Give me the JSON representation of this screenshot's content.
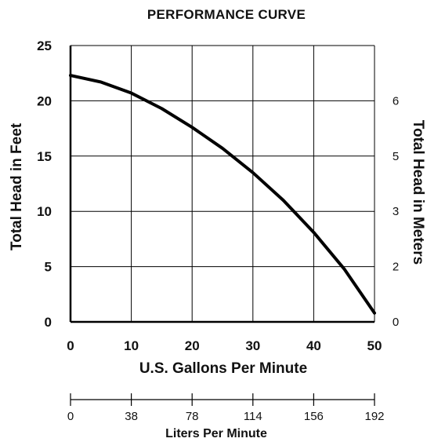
{
  "chart_data": {
    "type": "line",
    "title": "PERFORMANCE CURVE",
    "xlabel": "U.S. Gallons Per Minute",
    "ylabel": "Total Head in Feet",
    "y2label": "Total Head in Meters",
    "x2label": "Liters Per Minute",
    "xlim": [
      0,
      50
    ],
    "ylim": [
      0,
      25
    ],
    "grid": true,
    "x_ticks": [
      "0",
      "10",
      "20",
      "30",
      "40",
      "50"
    ],
    "y_ticks": [
      "0",
      "5",
      "10",
      "15",
      "20",
      "25"
    ],
    "y2_ticks": [
      {
        "label": "0",
        "feet": 0
      },
      {
        "label": "2",
        "feet": 5
      },
      {
        "label": "3",
        "feet": 10
      },
      {
        "label": "5",
        "feet": 15
      },
      {
        "label": "6",
        "feet": 20
      }
    ],
    "x2_ticks": [
      {
        "label": "0",
        "gpm": 0
      },
      {
        "label": "38",
        "gpm": 10
      },
      {
        "label": "78",
        "gpm": 20
      },
      {
        "label": "114",
        "gpm": 30
      },
      {
        "label": "156",
        "gpm": 40
      },
      {
        "label": "192",
        "gpm": 50
      }
    ],
    "series": [
      {
        "color": "#000000",
        "x": [
          0,
          5,
          10,
          15,
          20,
          25,
          30,
          35,
          40,
          45,
          50
        ],
        "y": [
          22.3,
          21.7,
          20.7,
          19.3,
          17.6,
          15.7,
          13.5,
          11.0,
          8.1,
          4.8,
          0.8
        ]
      }
    ]
  }
}
